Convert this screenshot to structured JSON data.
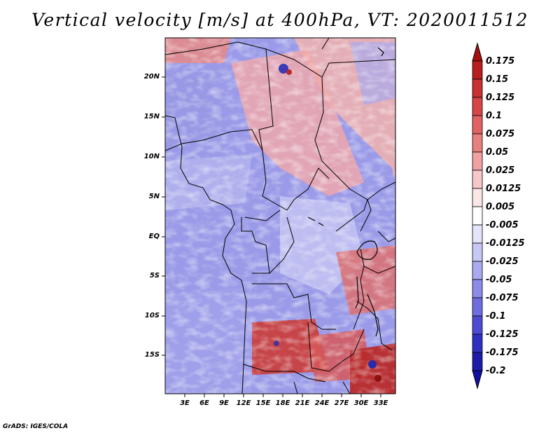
{
  "title": "Vertical velocity [m/s] at 400hPa, VT: 2020011512",
  "credit": "GrADS: IGES/COLA",
  "map": {
    "y_axis_labels": [
      "20N",
      "15N",
      "10N",
      "5N",
      "EQ",
      "5S",
      "10S",
      "15S"
    ],
    "x_axis_labels": [
      "3E",
      "6E",
      "9E",
      "12E",
      "15E",
      "18E",
      "21E",
      "24E",
      "27E",
      "30E",
      "33E"
    ]
  },
  "colorbar": {
    "labels": [
      "0.175",
      "0.15",
      "0.125",
      "0.1",
      "0.075",
      "0.05",
      "0.025",
      "0.0125",
      "0.005",
      "-0.005",
      "-0.0125",
      "-0.025",
      "-0.05",
      "-0.075",
      "-0.1",
      "-0.125",
      "-0.175",
      "-0.2"
    ],
    "colors": [
      "#a50f0f",
      "#b81e1e",
      "#c83232",
      "#d74646",
      "#e06262",
      "#e88080",
      "#f0a2a2",
      "#f7c8c8",
      "#fce6e6",
      "#ffffff",
      "#e4e4fa",
      "#c8c8f5",
      "#aaaaf0",
      "#8c8ce8",
      "#6e6ee0",
      "#4c4cd2",
      "#3030c0",
      "#1c1ca8",
      "#1010a0"
    ]
  }
}
